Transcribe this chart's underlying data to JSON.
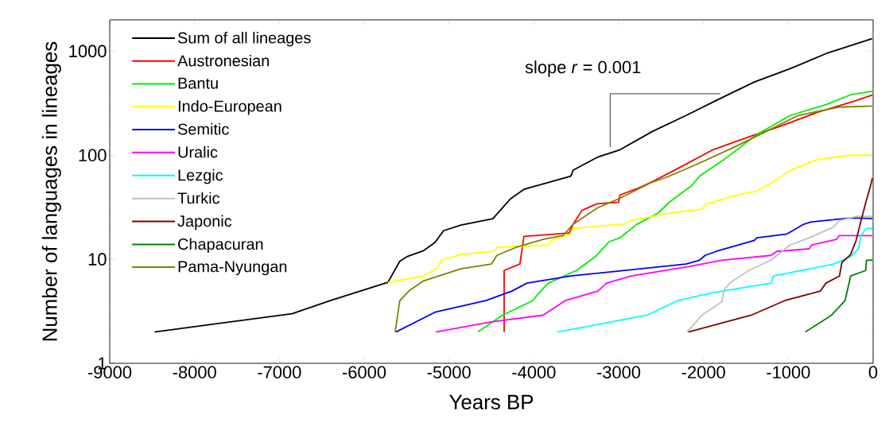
{
  "chart_data": {
    "type": "line",
    "xlabel": "Years BP",
    "ylabel": "Number of languages in lineages",
    "log": true,
    "legend": "top left",
    "line_style": "solid",
    "xlim": [
      -9000,
      0
    ],
    "xticks": [
      -9000,
      -8000,
      -7000,
      -6000,
      -5000,
      -4000,
      -3000,
      -2000,
      -1000,
      0
    ],
    "ylim": [
      1,
      2000
    ],
    "yticks": [
      1,
      10,
      100,
      1000
    ],
    "annotations": [
      "slope *r* = 0.001"
    ],
    "series": [
      {
        "name": "Sum of all lineages",
        "color": "#000000",
        "x": [
          -8470,
          -6850,
          -6400,
          -5720,
          -5580,
          -5485,
          -5300,
          -5165,
          -5065,
          -4860,
          -4483,
          -4277,
          -4117,
          -3564,
          -3536,
          -3245,
          -2983,
          -2598,
          -2205,
          -1850,
          -1400,
          -978,
          -528,
          -12
        ],
        "values": [
          2,
          3,
          4,
          6,
          9.6,
          10.7,
          12.1,
          14.5,
          18.8,
          21.3,
          24.5,
          38,
          47,
          63,
          72,
          96,
          113,
          170,
          241,
          336,
          506,
          680,
          967,
          1320
        ]
      },
      {
        "name": "Austronesian",
        "color": "#ff0000",
        "x": [
          -4350,
          -4350,
          -4164,
          -4117,
          -3583,
          -3536,
          -3433,
          -3255,
          -3002,
          -2983,
          -2786,
          -2598,
          -2270,
          -1887,
          -1465,
          -1109,
          -659,
          -265,
          -9
        ],
        "values": [
          2,
          7.8,
          9,
          16.6,
          17.9,
          21.7,
          29.5,
          34.1,
          35.4,
          41.5,
          47.6,
          56,
          77,
          113,
          150,
          188,
          258,
          323,
          378
        ]
      },
      {
        "name": "Bantu",
        "color": "#00ee00",
        "x": [
          -4660,
          -4370,
          -4014,
          -3920,
          -3827,
          -3499,
          -3274,
          -3115,
          -2983,
          -2786,
          -2533,
          -2402,
          -2139,
          -2046,
          -1756,
          -1371,
          -978,
          -556,
          -265,
          -9
        ],
        "values": [
          2,
          2.9,
          4,
          4.95,
          5.9,
          7.8,
          10.6,
          14.7,
          16.1,
          21.7,
          27.8,
          35.4,
          51,
          63,
          91,
          158,
          241,
          306,
          381,
          413
        ]
      },
      {
        "name": "Indo-European",
        "color": "#ffff00",
        "x": [
          -5720,
          -5300,
          -5139,
          -5092,
          -4860,
          -4483,
          -4455,
          -4436,
          -3827,
          -3789,
          -3564,
          -3536,
          -2917,
          -2851,
          -2402,
          -2017,
          -1962,
          -1559,
          -1371,
          -1203,
          -978,
          -659,
          -265,
          -9
        ],
        "values": [
          6,
          6.9,
          8.2,
          9.8,
          11.1,
          11.9,
          12.3,
          13,
          13.7,
          15.2,
          17.5,
          19.8,
          22,
          23.6,
          27.8,
          30.3,
          34.1,
          42.3,
          45.3,
          54,
          71.5,
          91,
          100,
          100
        ]
      },
      {
        "name": "Semitic",
        "color": "#0000ff",
        "x": [
          -5626,
          -5165,
          -4567,
          -4258,
          -4080,
          -3564,
          -2205,
          -2046,
          -1980,
          -1850,
          -1400,
          -1371,
          -1015,
          -818,
          -725,
          -265,
          -9
        ],
        "values": [
          2,
          3.1,
          4,
          4.95,
          5.9,
          6.9,
          9,
          9.8,
          10.9,
          11.9,
          15.2,
          16.1,
          17.5,
          21.7,
          22.9,
          25,
          24.6
        ]
      },
      {
        "name": "Uralic",
        "color": "#ff00ff",
        "x": [
          -5155,
          -4500,
          -3892,
          -3630,
          -3245,
          -3142,
          -2851,
          -2177,
          -1784,
          -1203,
          -1137,
          -753,
          -725,
          -434,
          -397,
          -9
        ],
        "values": [
          2,
          2.5,
          2.9,
          4,
          4.95,
          5.9,
          6.9,
          8.5,
          9.8,
          10.9,
          11.9,
          12.6,
          13.7,
          15.5,
          16.9,
          16.9
        ]
      },
      {
        "name": "Lezgic",
        "color": "#00ffff",
        "x": [
          -3724,
          -2664,
          -2308,
          -1887,
          -1203,
          -1175,
          -462,
          -265,
          -172,
          -144,
          -78,
          -9
        ],
        "values": [
          2,
          2.9,
          4,
          4.77,
          5.9,
          6.9,
          9,
          10.6,
          12.6,
          16.9,
          19.8,
          19.8
        ]
      },
      {
        "name": "Turkic",
        "color": "#c0c0c0",
        "x": [
          -2195,
          -2017,
          -1784,
          -1756,
          -1690,
          -1465,
          -1203,
          -978,
          -753,
          -462,
          -397,
          -200,
          -9
        ],
        "values": [
          2,
          2.9,
          3.9,
          5.1,
          5.9,
          7.8,
          9.8,
          13.7,
          16.1,
          20.5,
          23.6,
          25.8,
          25.8
        ]
      },
      {
        "name": "Japonic",
        "color": "#800000",
        "x": [
          -2177,
          -1437,
          -1043,
          -621,
          -556,
          -397,
          -368,
          -265,
          -200,
          -144,
          -78,
          -22,
          -9
        ],
        "values": [
          2,
          2.9,
          4,
          4.95,
          5.9,
          6.9,
          9.3,
          11.1,
          15.2,
          23.2,
          37.2,
          54,
          60
        ]
      },
      {
        "name": "Chapacuran",
        "color": "#008000",
        "x": [
          -799,
          -490,
          -331,
          -265,
          -87,
          -78,
          -9
        ],
        "values": [
          2,
          2.9,
          4,
          6.9,
          7.8,
          9.8,
          9.8
        ]
      },
      {
        "name": "Pama-Nyungan",
        "color": "#808000",
        "x": [
          -5635,
          -5580,
          -5467,
          -5300,
          -4860,
          -4500,
          -4436,
          -4211,
          -3892,
          -3658,
          -3536,
          -3245,
          -2983,
          -2627,
          -2402,
          -2074,
          -1624,
          -1371,
          -884,
          -397,
          -12
        ],
        "values": [
          2,
          4,
          5,
          6.2,
          8.1,
          9,
          10.9,
          13,
          15.5,
          16.9,
          21.7,
          31.3,
          38.7,
          54,
          63,
          82,
          121,
          153,
          241,
          290,
          297
        ]
      },
      {
        "color": "#000000",
        "x": [
          -3100,
          -3100,
          -1800
        ],
        "values": [
          120,
          390,
          390
        ]
      }
    ]
  }
}
